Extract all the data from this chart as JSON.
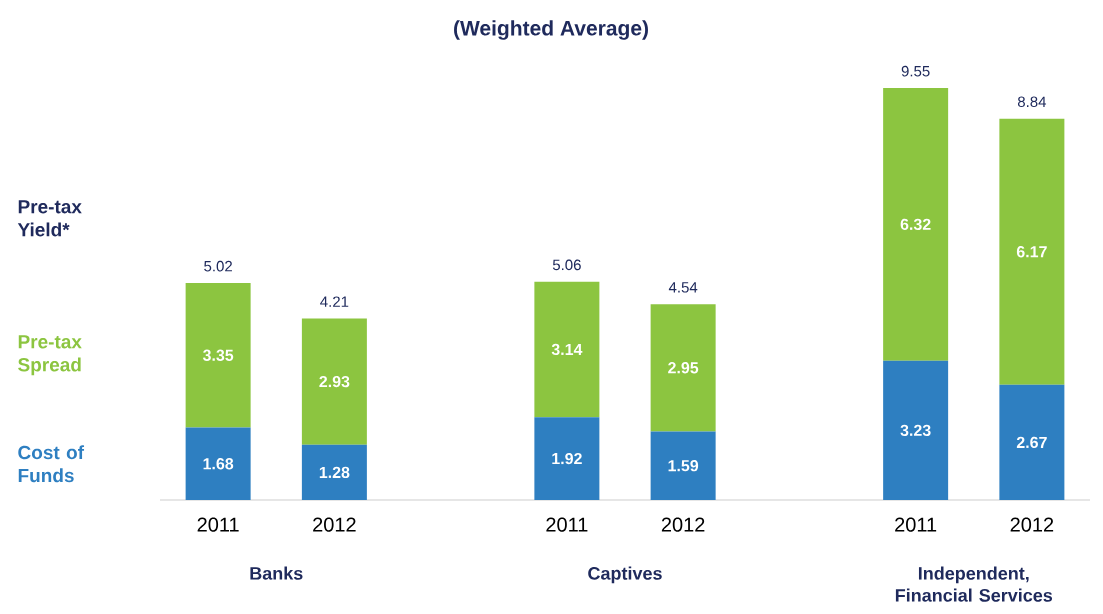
{
  "chart_data": {
    "type": "bar",
    "stacked": true,
    "title": "(Weighted Average)",
    "categories": [
      "2011",
      "2012",
      null,
      "2011",
      "2012",
      null,
      "2011",
      "2012"
    ],
    "series": [
      {
        "name": "Cost of Funds",
        "color": "#2e7fc1",
        "values": [
          1.68,
          1.28,
          null,
          1.92,
          1.59,
          null,
          3.23,
          2.67
        ]
      },
      {
        "name": "Pre-tax Spread",
        "color": "#8cc540",
        "values": [
          3.35,
          2.93,
          null,
          3.14,
          2.95,
          null,
          6.32,
          6.17
        ]
      }
    ],
    "totals": [
      "5.02",
      "4.21",
      null,
      "5.06",
      "4.54",
      null,
      "9.55",
      "8.84"
    ],
    "data_labels": true,
    "legend": "left",
    "annotations": [
      "Banks",
      "Captives",
      "Independent, Financial Services",
      "Pre-tax Yield*"
    ]
  }
}
